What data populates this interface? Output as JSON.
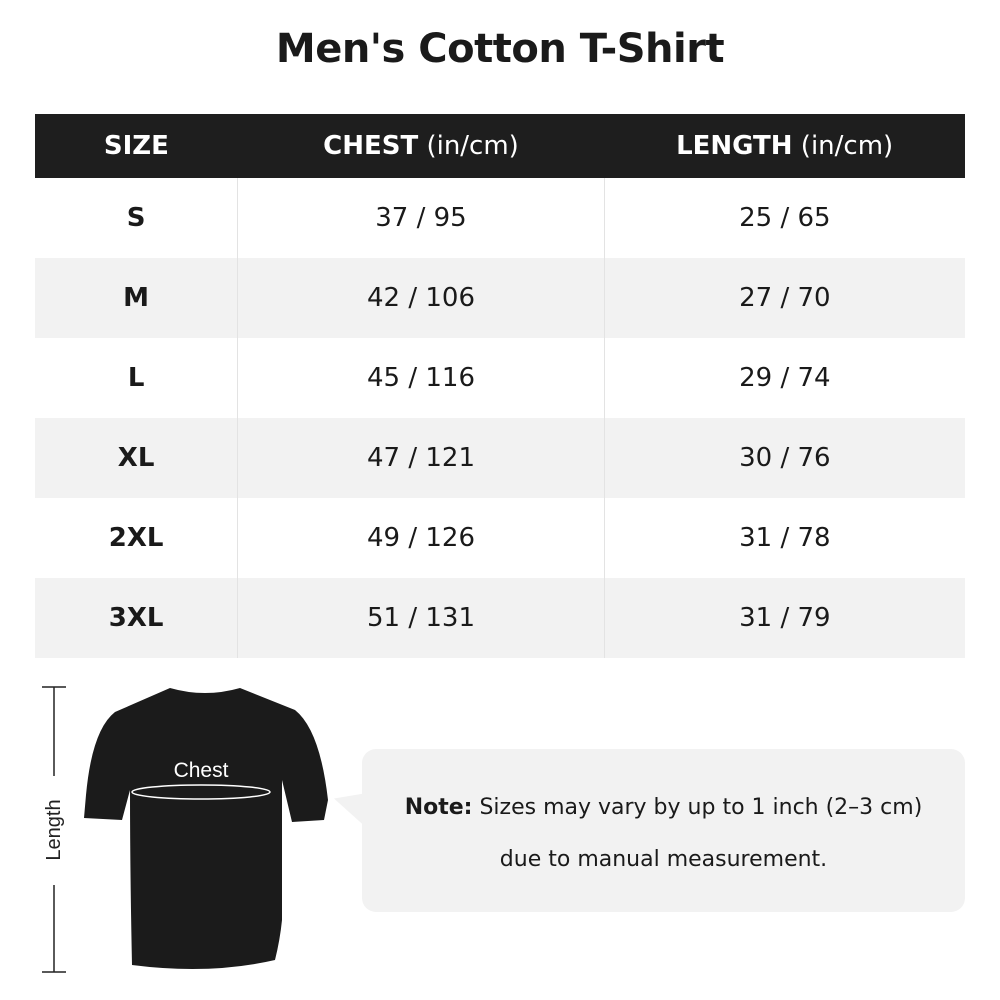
{
  "title": "Men's Cotton T-Shirt",
  "table": {
    "headers": [
      {
        "label": "SIZE",
        "unit": ""
      },
      {
        "label": "CHEST",
        "unit": " (in/cm)"
      },
      {
        "label": "LENGTH",
        "unit": " (in/cm)"
      }
    ],
    "rows": [
      [
        "S",
        "37 / 95",
        "25 / 65"
      ],
      [
        "M",
        "42 / 106",
        "27 / 70"
      ],
      [
        "L",
        "45 / 116",
        "29 / 74"
      ],
      [
        "XL",
        "47 / 121",
        "30 / 76"
      ],
      [
        "2XL",
        "49 / 126",
        "31 / 78"
      ],
      [
        "3XL",
        "51 / 131",
        "31 / 79"
      ]
    ]
  },
  "diagram": {
    "chest_label": "Chest",
    "length_label": "Length"
  },
  "note": {
    "label": "Note:",
    "line1": " Sizes may vary by up to 1 inch (2–3 cm)",
    "line2": "due to manual measurement."
  },
  "colors": {
    "header_bg": "#1e1e1e",
    "alt_row": "#f2f2f2",
    "note_bg": "#f2f2f2"
  }
}
